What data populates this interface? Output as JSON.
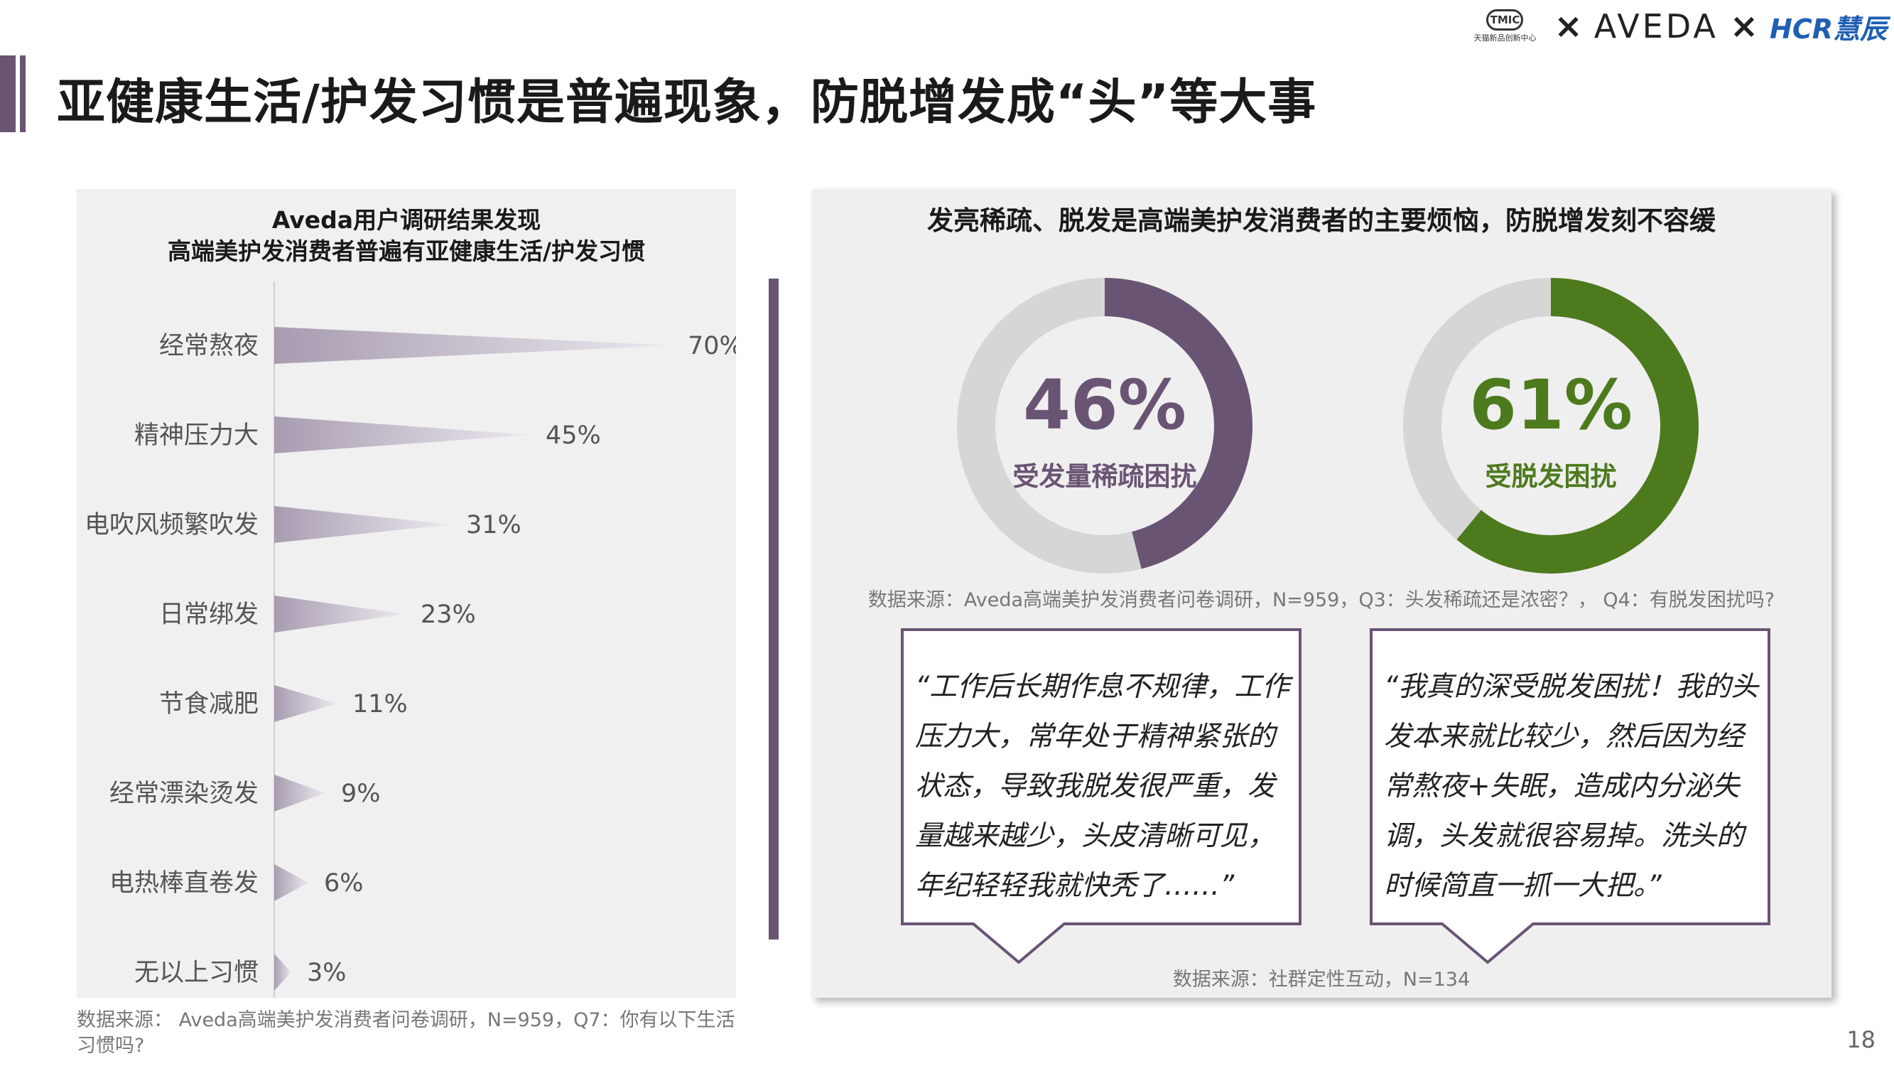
{
  "header": {
    "title": "亚健康生活/护发习惯是普遍现象，防脱增发成“头”等大事",
    "logos": {
      "tmic_badge": "TMIC",
      "tmic_sub": "天猫新品创新中心",
      "times": "×",
      "aveda": "AVEDA",
      "hcr": "HCR慧辰"
    }
  },
  "left_panel": {
    "title_line1": "Aveda用户调研结果发现",
    "title_line2": "高端美护发消费者普遍有亚健康生活/护发习惯",
    "source": "数据来源： Aveda高端美护发消费者问卷调研，N=959，Q7：你有以下生活习惯吗?"
  },
  "right_panel": {
    "title": "发亮稀疏、脱发是高端美护发消费者的主要烦恼，防脱增发刻不容缓",
    "donut_source": "数据来源：Aveda高端美护发消费者问卷调研，N=959，Q3：头发稀疏还是浓密？， Q4：有脱发困扰吗?",
    "quote_source": "数据来源：社群定性互动，N=134",
    "quotes": [
      {
        "text": "“工作后长期作息不规律，工作压力大，常年处于精神紧张的状态，导致我脱发很严重，发量越来越少，头皮清晰可见，年纪轻轻我就快秃了……”"
      },
      {
        "text": "“我真的深受脱发困扰！我的头发本来就比较少，然后因为经常熬夜+失眠，造成内分泌失调，头发就很容易掉。洗头的时候简直一抓一大把。”"
      }
    ]
  },
  "page_number": "18",
  "colors": {
    "purple": "#6a5474",
    "green": "#4e7a1e",
    "donut_track": "#d6d6d6",
    "bar_light": "#ebe8ee",
    "bar_dark": "#a89cb0"
  },
  "chart_data": [
    {
      "type": "bar",
      "orientation": "horizontal",
      "title": "Aveda用户调研结果发现 高端美护发消费者普遍有亚健康生活/护发习惯",
      "categories": [
        "经常熬夜",
        "精神压力大",
        "电吹风频繁吹发",
        "日常绑发",
        "节食减肥",
        "经常漂染烫发",
        "电热棒直卷发",
        "无以上习惯"
      ],
      "values": [
        70,
        45,
        31,
        23,
        11,
        9,
        6,
        3
      ],
      "value_labels": [
        "70%",
        "45%",
        "31%",
        "23%",
        "11%",
        "9%",
        "6%",
        "3%"
      ],
      "unit": "%",
      "xlim": [
        0,
        70
      ]
    },
    {
      "type": "pie",
      "variant": "donut",
      "center_value": "46%",
      "center_label": "受发量稀疏困扰",
      "value": 46,
      "color": "#6a5474"
    },
    {
      "type": "pie",
      "variant": "donut",
      "center_value": "61%",
      "center_label": "受脱发困扰",
      "value": 61,
      "color": "#4e7a1e"
    }
  ]
}
